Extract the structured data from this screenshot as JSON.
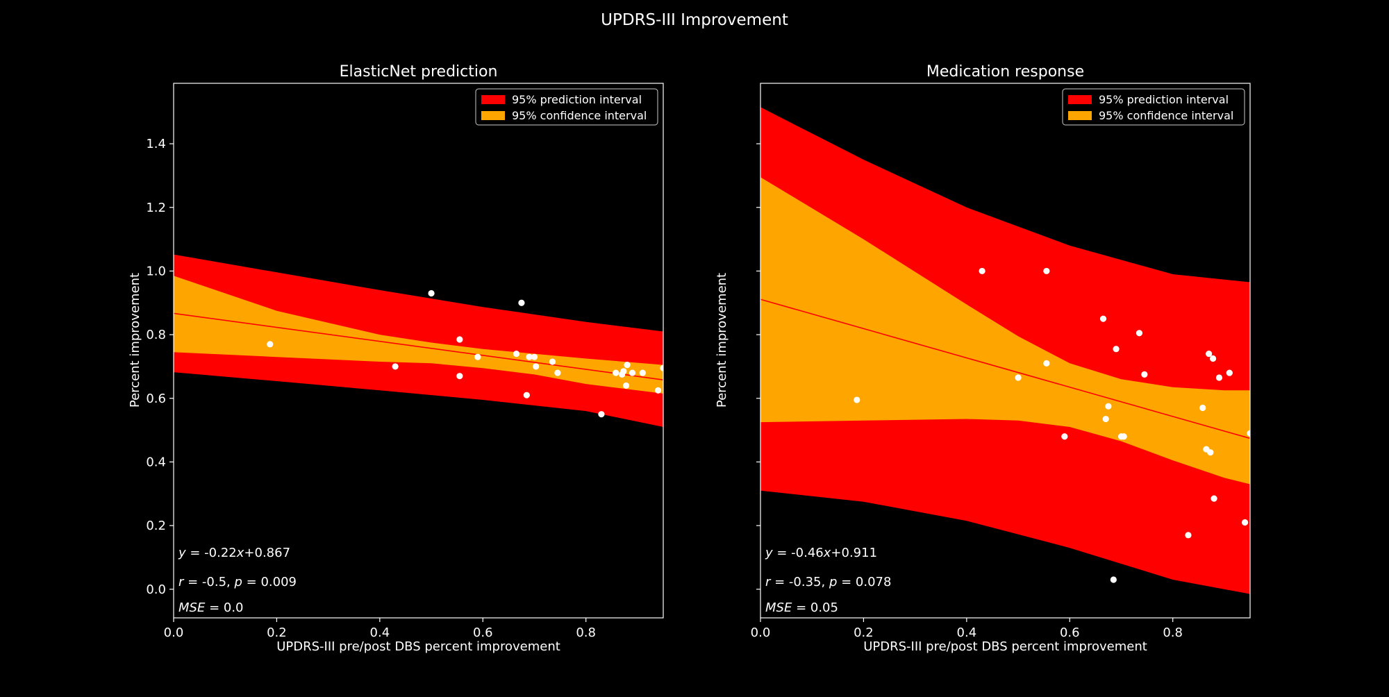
{
  "figure": {
    "suptitle": "UPDRS-III Improvement",
    "background": "#000000"
  },
  "colors": {
    "prediction_interval": "#ff0000",
    "confidence_interval": "#ffa500",
    "regression_line": "#ff0000",
    "points": "#ffffff",
    "axes": "#ffffff"
  },
  "chart_data": [
    {
      "type": "scatter",
      "title": "ElasticNet prediction",
      "xlabel": "UPDRS-III pre/post DBS percent improvement",
      "ylabel": "Percent improvement",
      "xlim": [
        0.0,
        0.95
      ],
      "ylim": [
        -0.09,
        1.59
      ],
      "xticks": [
        0.0,
        0.2,
        0.4,
        0.6,
        0.8
      ],
      "xtick_labels": [
        "0.0",
        "0.2",
        "0.4",
        "0.6",
        "0.8"
      ],
      "yticks": [
        0.0,
        0.2,
        0.4,
        0.6,
        0.8,
        1.0,
        1.2,
        1.4
      ],
      "ytick_labels": [
        "0.0",
        "0.2",
        "0.4",
        "0.6",
        "0.8",
        "1.0",
        "1.2",
        "1.4"
      ],
      "show_ytick_labels": true,
      "grid": false,
      "legend": {
        "location": "top-right",
        "entries": [
          "95% prediction interval",
          "95% confidence interval"
        ]
      },
      "regression": {
        "slope": -0.22,
        "intercept": 0.867
      },
      "prediction_band": {
        "x": [
          0.0,
          0.2,
          0.4,
          0.6,
          0.8,
          0.95
        ],
        "upper": [
          1.052,
          0.996,
          0.94,
          0.887,
          0.84,
          0.81
        ],
        "lower": [
          0.682,
          0.654,
          0.625,
          0.595,
          0.56,
          0.51
        ]
      },
      "confidence_band": {
        "x": [
          0.0,
          0.2,
          0.4,
          0.5,
          0.6,
          0.7,
          0.8,
          0.95
        ],
        "upper": [
          0.985,
          0.875,
          0.8,
          0.775,
          0.755,
          0.74,
          0.725,
          0.705
        ],
        "lower": [
          0.745,
          0.73,
          0.715,
          0.71,
          0.695,
          0.675,
          0.645,
          0.615
        ]
      },
      "points": {
        "x": [
          0.187,
          0.43,
          0.5,
          0.555,
          0.555,
          0.59,
          0.665,
          0.675,
          0.685,
          0.69,
          0.7,
          0.703,
          0.735,
          0.745,
          0.83,
          0.858,
          0.87,
          0.873,
          0.878,
          0.88,
          0.89,
          0.91,
          0.94,
          0.95
        ],
        "y": [
          0.77,
          0.7,
          0.93,
          0.785,
          0.67,
          0.73,
          0.74,
          0.9,
          0.61,
          0.73,
          0.73,
          0.7,
          0.715,
          0.68,
          0.55,
          0.68,
          0.675,
          0.685,
          0.64,
          0.705,
          0.68,
          0.68,
          0.625,
          0.695
        ]
      },
      "annotations": {
        "equation": {
          "y_sym": "y",
          "rest": " = -0.22",
          "x_sym": "x",
          "tail": "+0.867"
        },
        "correlation": {
          "r_sym": "r",
          "r_val": " = -0.5, ",
          "p_sym": "p",
          "p_val": " = 0.009"
        },
        "mse": {
          "sym": "MSE",
          "val": " = 0.0"
        }
      }
    },
    {
      "type": "scatter",
      "title": "Medication response",
      "xlabel": "UPDRS-III pre/post DBS percent improvement",
      "ylabel": "Percent improvement",
      "xlim": [
        0.0,
        0.95
      ],
      "ylim": [
        -0.09,
        1.59
      ],
      "xticks": [
        0.0,
        0.2,
        0.4,
        0.6,
        0.8
      ],
      "xtick_labels": [
        "0.0",
        "0.2",
        "0.4",
        "0.6",
        "0.8"
      ],
      "yticks": [
        0.0,
        0.2,
        0.4,
        0.6,
        0.8,
        1.0,
        1.2,
        1.4
      ],
      "ytick_labels": [],
      "show_ytick_labels": false,
      "grid": false,
      "legend": {
        "location": "top-right",
        "entries": [
          "95% prediction interval",
          "95% confidence interval"
        ]
      },
      "regression": {
        "slope": -0.46,
        "intercept": 0.911
      },
      "prediction_band": {
        "x": [
          0.0,
          0.2,
          0.4,
          0.6,
          0.8,
          0.95
        ],
        "upper": [
          1.515,
          1.35,
          1.2,
          1.08,
          0.99,
          0.965
        ],
        "lower": [
          0.31,
          0.275,
          0.215,
          0.13,
          0.03,
          -0.015
        ]
      },
      "confidence_band": {
        "x": [
          0.0,
          0.2,
          0.4,
          0.5,
          0.6,
          0.7,
          0.8,
          0.9,
          0.95
        ],
        "upper": [
          1.295,
          1.1,
          0.895,
          0.795,
          0.71,
          0.66,
          0.635,
          0.625,
          0.625
        ],
        "lower": [
          0.525,
          0.53,
          0.535,
          0.53,
          0.51,
          0.465,
          0.405,
          0.35,
          0.33
        ]
      },
      "points": {
        "x": [
          0.187,
          0.43,
          0.5,
          0.555,
          0.555,
          0.59,
          0.665,
          0.67,
          0.675,
          0.685,
          0.69,
          0.7,
          0.705,
          0.735,
          0.745,
          0.83,
          0.858,
          0.865,
          0.87,
          0.873,
          0.878,
          0.88,
          0.89,
          0.91,
          0.94,
          0.95
        ],
        "y": [
          0.595,
          1.0,
          0.665,
          1.0,
          0.71,
          0.48,
          0.85,
          0.535,
          0.575,
          0.03,
          0.755,
          0.48,
          0.48,
          0.805,
          0.675,
          0.17,
          0.57,
          0.44,
          0.74,
          0.43,
          0.725,
          0.285,
          0.665,
          0.68,
          0.21,
          0.49
        ]
      },
      "annotations": {
        "equation": {
          "y_sym": "y",
          "rest": " = -0.46",
          "x_sym": "x",
          "tail": "+0.911"
        },
        "correlation": {
          "r_sym": "r",
          "r_val": " = -0.35, ",
          "p_sym": "p",
          "p_val": " = 0.078"
        },
        "mse": {
          "sym": "MSE",
          "val": " = 0.05"
        }
      }
    }
  ]
}
